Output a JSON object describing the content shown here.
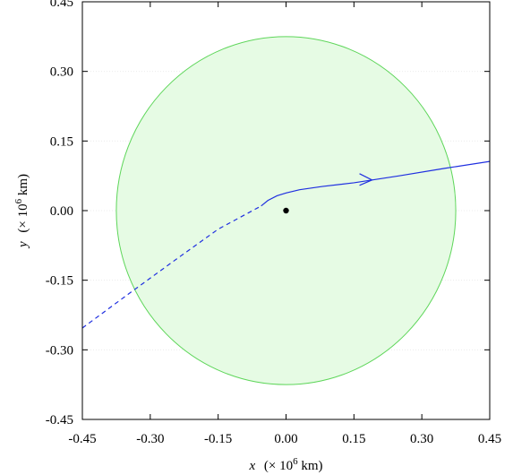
{
  "chart_data": {
    "type": "line",
    "title": "",
    "xlabel": {
      "var": "x",
      "pre": "(× 10",
      "exp": "6",
      "post": " km)"
    },
    "ylabel": {
      "var": "y",
      "pre": "(× 10",
      "exp": "6",
      "post": " km)"
    },
    "xlim": [
      -0.45,
      0.45
    ],
    "ylim": [
      -0.45,
      0.45
    ],
    "xticks": [
      -0.45,
      -0.3,
      -0.15,
      0.0,
      0.15,
      0.3,
      0.45
    ],
    "yticks": [
      -0.45,
      -0.3,
      -0.15,
      0.0,
      0.15,
      0.3,
      0.45
    ],
    "xtick_labels": [
      "-0.45",
      "-0.30",
      "-0.15",
      "0.00",
      "0.15",
      "0.30",
      "0.45"
    ],
    "ytick_labels": [
      "-0.45",
      "-0.30",
      "-0.15",
      "0.00",
      "0.15",
      "0.30",
      "0.45"
    ],
    "grid": true,
    "sphere": {
      "center": [
        0.0,
        0.0
      ],
      "radius": 0.375,
      "fill": "#e6fbe4",
      "stroke": "#5ed65a"
    },
    "body": {
      "x": 0.0,
      "y": 0.0,
      "color": "#000000"
    },
    "series": [
      {
        "style": "dashed",
        "color": "#1f2fe0",
        "x": [
          -0.45,
          -0.35,
          -0.25,
          -0.15,
          -0.055
        ],
        "y": [
          -0.253,
          -0.181,
          -0.11,
          -0.04,
          0.01
        ]
      },
      {
        "style": "solid",
        "color": "#1f2fe0",
        "x": [
          -0.055,
          -0.04,
          -0.02,
          0.0,
          0.03,
          0.08,
          0.15,
          0.25,
          0.35,
          0.45
        ],
        "y": [
          0.01,
          0.022,
          0.032,
          0.038,
          0.045,
          0.052,
          0.06,
          0.075,
          0.091,
          0.106
        ]
      }
    ],
    "arrow": {
      "x": 0.19,
      "y": 0.066,
      "direction": "right"
    }
  }
}
